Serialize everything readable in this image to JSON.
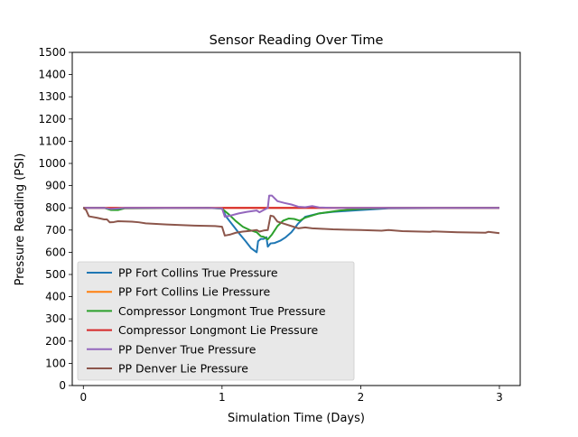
{
  "chart_data": {
    "type": "line",
    "title": "Sensor Reading Over Time",
    "xlabel": "Simulation Time (Days)",
    "ylabel": "Pressure Reading (PSI)",
    "xlim": [
      -0.08,
      3.15
    ],
    "ylim": [
      0,
      1500
    ],
    "x_ticks": [
      0,
      1,
      2,
      3
    ],
    "y_ticks": [
      0,
      100,
      200,
      300,
      400,
      500,
      600,
      700,
      800,
      900,
      1000,
      1100,
      1200,
      1300,
      1400,
      1500
    ],
    "grid": false,
    "legend_position": "lower-left",
    "series": [
      {
        "name": "PP Fort Collins True Pressure",
        "color": "#1f77b4",
        "points": [
          [
            0,
            800
          ],
          [
            0.15,
            800
          ],
          [
            0.2,
            792
          ],
          [
            0.3,
            800
          ],
          [
            0.9,
            800
          ],
          [
            1.0,
            798
          ],
          [
            1.03,
            760
          ],
          [
            1.08,
            720
          ],
          [
            1.13,
            680
          ],
          [
            1.17,
            650
          ],
          [
            1.21,
            618
          ],
          [
            1.25,
            600
          ],
          [
            1.26,
            650
          ],
          [
            1.28,
            660
          ],
          [
            1.3,
            660
          ],
          [
            1.32,
            668
          ],
          [
            1.33,
            625
          ],
          [
            1.35,
            640
          ],
          [
            1.38,
            642
          ],
          [
            1.42,
            652
          ],
          [
            1.46,
            668
          ],
          [
            1.5,
            690
          ],
          [
            1.55,
            730
          ],
          [
            1.6,
            760
          ],
          [
            1.7,
            775
          ],
          [
            1.8,
            782
          ],
          [
            1.9,
            786
          ],
          [
            2.0,
            790
          ],
          [
            2.2,
            798
          ],
          [
            3.0,
            800
          ]
        ]
      },
      {
        "name": "PP Fort Collins Lie Pressure",
        "color": "#ff7f0e",
        "points": [
          [
            0,
            800
          ],
          [
            3.0,
            800
          ]
        ]
      },
      {
        "name": "Compressor Longmont True Pressure",
        "color": "#2ca02c",
        "points": [
          [
            0,
            800
          ],
          [
            0.15,
            800
          ],
          [
            0.2,
            790
          ],
          [
            0.25,
            790
          ],
          [
            0.3,
            798
          ],
          [
            0.9,
            800
          ],
          [
            1.0,
            796
          ],
          [
            1.05,
            770
          ],
          [
            1.1,
            740
          ],
          [
            1.15,
            715
          ],
          [
            1.2,
            700
          ],
          [
            1.25,
            690
          ],
          [
            1.28,
            672
          ],
          [
            1.3,
            670
          ],
          [
            1.33,
            658
          ],
          [
            1.36,
            680
          ],
          [
            1.4,
            718
          ],
          [
            1.44,
            742
          ],
          [
            1.48,
            752
          ],
          [
            1.52,
            750
          ],
          [
            1.56,
            742
          ],
          [
            1.6,
            756
          ],
          [
            1.7,
            775
          ],
          [
            1.85,
            788
          ],
          [
            2.0,
            795
          ],
          [
            2.2,
            800
          ],
          [
            3.0,
            800
          ]
        ]
      },
      {
        "name": "Compressor Longmont Lie Pressure",
        "color": "#d62728",
        "points": [
          [
            0,
            800
          ],
          [
            3.0,
            800
          ]
        ]
      },
      {
        "name": "PP Denver True Pressure",
        "color": "#9467bd",
        "points": [
          [
            0,
            800
          ],
          [
            0.15,
            800
          ],
          [
            0.2,
            795
          ],
          [
            0.3,
            800
          ],
          [
            0.9,
            800
          ],
          [
            1.0,
            798
          ],
          [
            1.02,
            760
          ],
          [
            1.06,
            765
          ],
          [
            1.12,
            775
          ],
          [
            1.18,
            782
          ],
          [
            1.25,
            788
          ],
          [
            1.27,
            780
          ],
          [
            1.3,
            790
          ],
          [
            1.33,
            800
          ],
          [
            1.34,
            855
          ],
          [
            1.36,
            855
          ],
          [
            1.4,
            830
          ],
          [
            1.45,
            822
          ],
          [
            1.5,
            815
          ],
          [
            1.55,
            805
          ],
          [
            1.6,
            803
          ],
          [
            1.65,
            808
          ],
          [
            1.7,
            802
          ],
          [
            1.8,
            800
          ],
          [
            2.0,
            800
          ],
          [
            3.0,
            800
          ]
        ]
      },
      {
        "name": "PP Denver Lie Pressure",
        "color": "#8c564b",
        "points": [
          [
            0,
            800
          ],
          [
            0.02,
            790
          ],
          [
            0.04,
            762
          ],
          [
            0.1,
            755
          ],
          [
            0.15,
            748
          ],
          [
            0.17,
            748
          ],
          [
            0.19,
            735
          ],
          [
            0.22,
            736
          ],
          [
            0.25,
            740
          ],
          [
            0.35,
            738
          ],
          [
            0.4,
            735
          ],
          [
            0.45,
            730
          ],
          [
            0.6,
            725
          ],
          [
            0.8,
            720
          ],
          [
            0.95,
            718
          ],
          [
            1.0,
            715
          ],
          [
            1.02,
            675
          ],
          [
            1.06,
            680
          ],
          [
            1.1,
            688
          ],
          [
            1.15,
            693
          ],
          [
            1.2,
            696
          ],
          [
            1.25,
            700
          ],
          [
            1.27,
            693
          ],
          [
            1.3,
            698
          ],
          [
            1.33,
            700
          ],
          [
            1.35,
            765
          ],
          [
            1.37,
            762
          ],
          [
            1.4,
            738
          ],
          [
            1.45,
            728
          ],
          [
            1.5,
            718
          ],
          [
            1.55,
            708
          ],
          [
            1.6,
            712
          ],
          [
            1.65,
            708
          ],
          [
            1.8,
            703
          ],
          [
            2.0,
            700
          ],
          [
            2.15,
            697
          ],
          [
            2.2,
            700
          ],
          [
            2.3,
            695
          ],
          [
            2.5,
            692
          ],
          [
            2.52,
            694
          ],
          [
            2.7,
            690
          ],
          [
            2.9,
            688
          ],
          [
            2.92,
            692
          ],
          [
            3.0,
            686
          ]
        ]
      }
    ]
  }
}
